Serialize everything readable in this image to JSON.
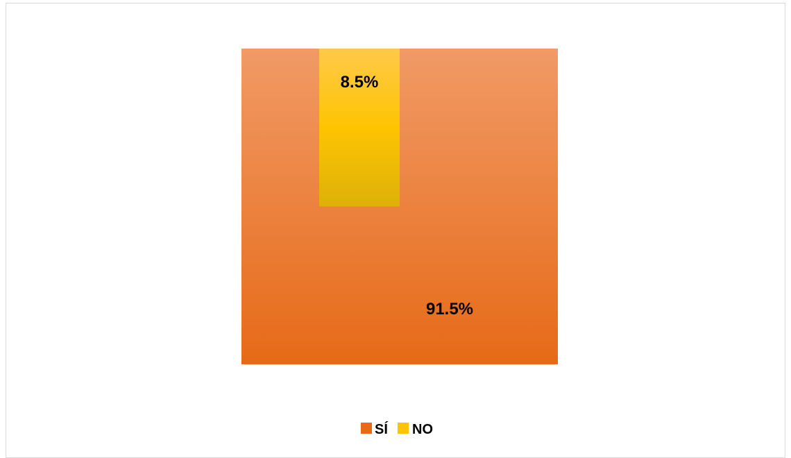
{
  "chart_data": {
    "type": "treemap",
    "title": "",
    "categories": [
      "SÍ",
      "NO"
    ],
    "values": [
      91.5,
      8.5
    ],
    "labels": [
      "91.5%",
      "8.5%"
    ],
    "colors": {
      "si_top": "#f19a66",
      "si_bottom": "#e66a17",
      "no_top": "#ffc94a",
      "no_mid": "#fec402",
      "no_bottom": "#ddb108"
    },
    "legend": {
      "placement": "bottom",
      "entries": [
        "SÍ",
        "NO"
      ]
    },
    "grid": false
  }
}
